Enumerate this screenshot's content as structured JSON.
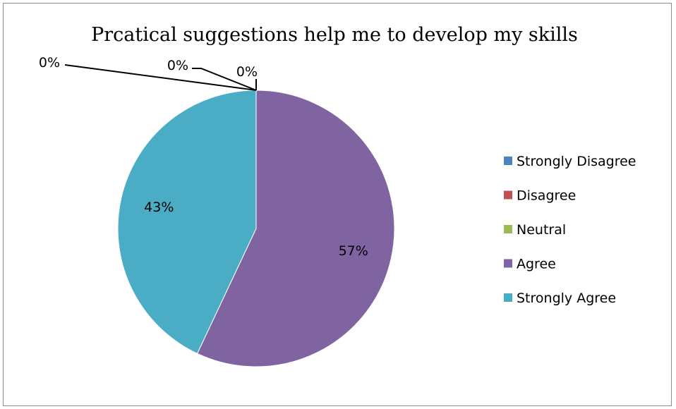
{
  "chart_data": {
    "type": "pie",
    "title": "Prcatical suggestions help me to develop my skills",
    "categories": [
      "Strongly Disagree",
      " Disagree",
      "Neutral",
      "Agree",
      "Strongly Agree"
    ],
    "values": [
      0,
      0,
      0,
      57,
      43
    ],
    "data_labels": [
      "0%",
      "0%",
      "0%",
      "57%",
      "43%"
    ],
    "colors": [
      "#4f81bd",
      "#c0504d",
      "#9bbb59",
      "#8064a2",
      "#4bacc6"
    ],
    "legend_position": "right"
  }
}
